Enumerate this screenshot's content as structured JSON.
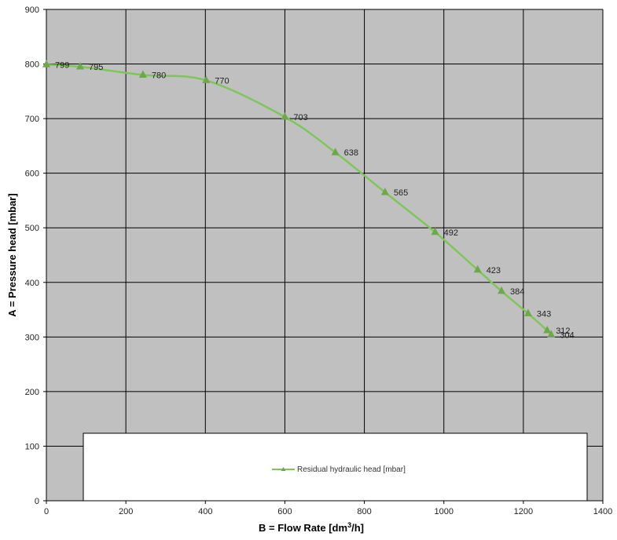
{
  "chart_data": {
    "type": "line",
    "title": "",
    "xlabel_main": "B = Flow Rate [dm",
    "xlabel_sup": "3",
    "xlabel_tail": "/h]",
    "ylabel": "A = Pressure head [mbar]",
    "xlim": [
      0,
      1400
    ],
    "ylim": [
      0,
      900
    ],
    "x_ticks": [
      0,
      200,
      400,
      600,
      800,
      1000,
      1200,
      1400
    ],
    "y_ticks": [
      0,
      100,
      200,
      300,
      400,
      500,
      600,
      700,
      800,
      900
    ],
    "grid": true,
    "legend_position": "bottom",
    "series": [
      {
        "name": "Residual hydraulic head [mbar]",
        "color": "#7dc65a",
        "marker_color": "#6ea84c",
        "marker": "triangle",
        "x": [
          0,
          85,
          243,
          402,
          600,
          727,
          852,
          978,
          1085,
          1145,
          1212,
          1260,
          1270
        ],
        "y": [
          799,
          795,
          780,
          770,
          703,
          638,
          565,
          492,
          423,
          384,
          343,
          312,
          304
        ],
        "labels": [
          "799",
          "795",
          "780",
          "770",
          "703",
          "638",
          "565",
          "492",
          "423",
          "384",
          "343",
          "312",
          "304"
        ]
      }
    ],
    "plot_background": "#c0c0c0",
    "grid_color": "#000000"
  }
}
